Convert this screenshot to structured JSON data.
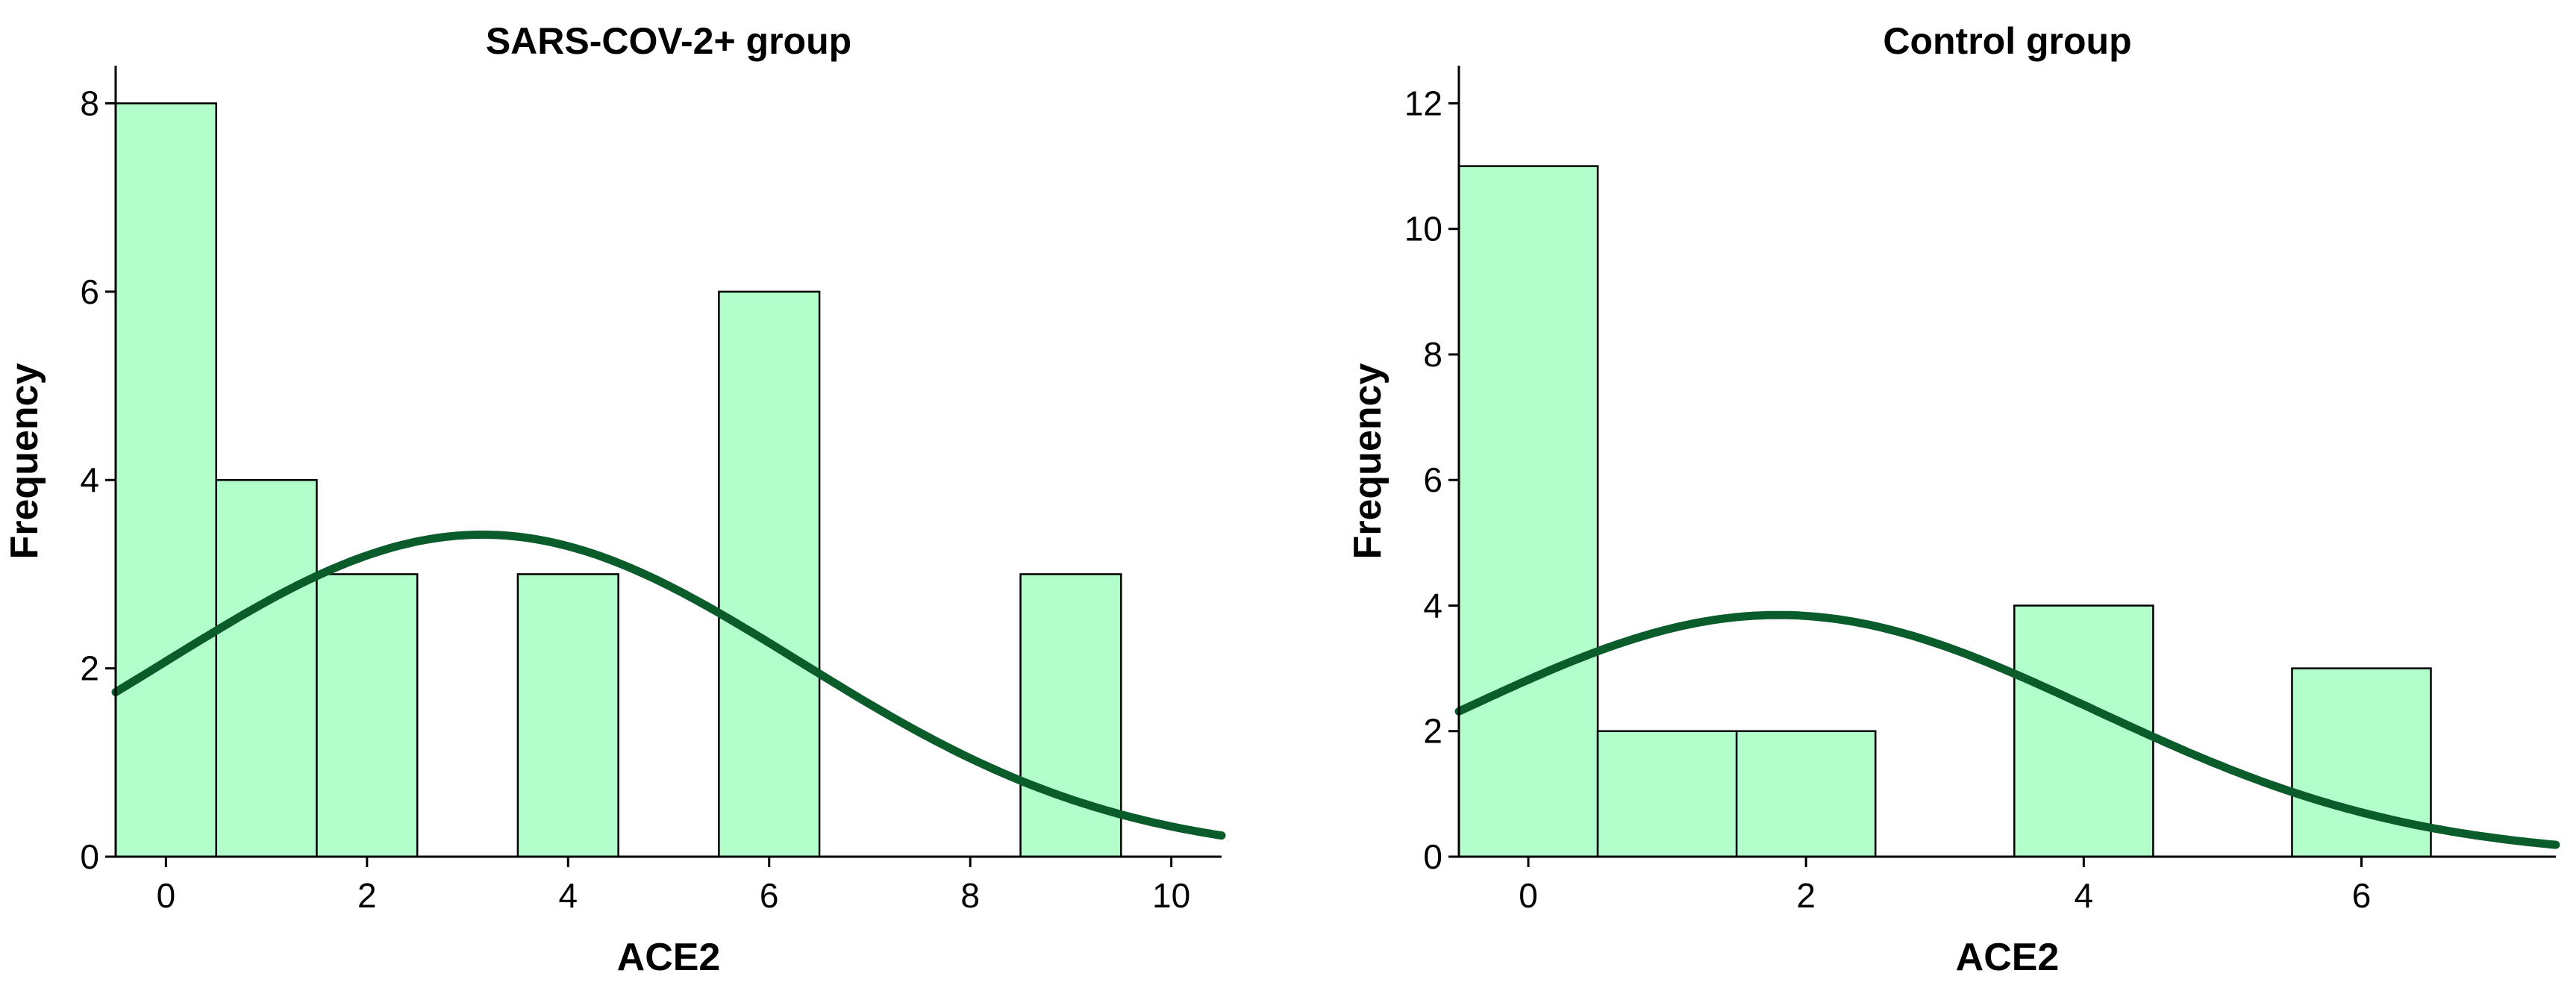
{
  "chart_data": [
    {
      "type": "bar",
      "title": "SARS-COV-2+ group",
      "xlabel": "ACE2",
      "ylabel": "Frequency",
      "xlim": [
        -0.5,
        10.5
      ],
      "ylim": [
        0,
        8.4
      ],
      "xticks": [
        0,
        2,
        4,
        6,
        8,
        10
      ],
      "yticks": [
        0,
        2,
        4,
        6,
        8
      ],
      "bars": [
        {
          "x": 0,
          "value": 8
        },
        {
          "x": 1,
          "value": 4
        },
        {
          "x": 2,
          "value": 3
        },
        {
          "x": 4,
          "value": 3
        },
        {
          "x": 6,
          "value": 6
        },
        {
          "x": 9,
          "value": 3
        }
      ],
      "normal_curve": {
        "mean": 3.15,
        "sd": 3.15,
        "n": 27
      },
      "bar_color": "#b3ffcc",
      "curve_color": "#0a5c2a",
      "grid": false
    },
    {
      "type": "bar",
      "title": "Control group",
      "xlabel": "ACE2",
      "ylabel": "Frequency",
      "xlim": [
        -0.5,
        7.4
      ],
      "ylim": [
        0,
        12.6
      ],
      "xticks": [
        0,
        2,
        4,
        6
      ],
      "yticks": [
        0,
        2,
        4,
        6,
        8,
        10,
        12
      ],
      "bars": [
        {
          "x": 0,
          "value": 11
        },
        {
          "x": 1,
          "value": 2
        },
        {
          "x": 2,
          "value": 2
        },
        {
          "x": 4,
          "value": 4
        },
        {
          "x": 6,
          "value": 3
        }
      ],
      "normal_curve": {
        "mean": 1.8,
        "sd": 2.28,
        "n": 22
      },
      "bar_color": "#b3ffcc",
      "curve_color": "#0a5c2a",
      "grid": false
    }
  ]
}
